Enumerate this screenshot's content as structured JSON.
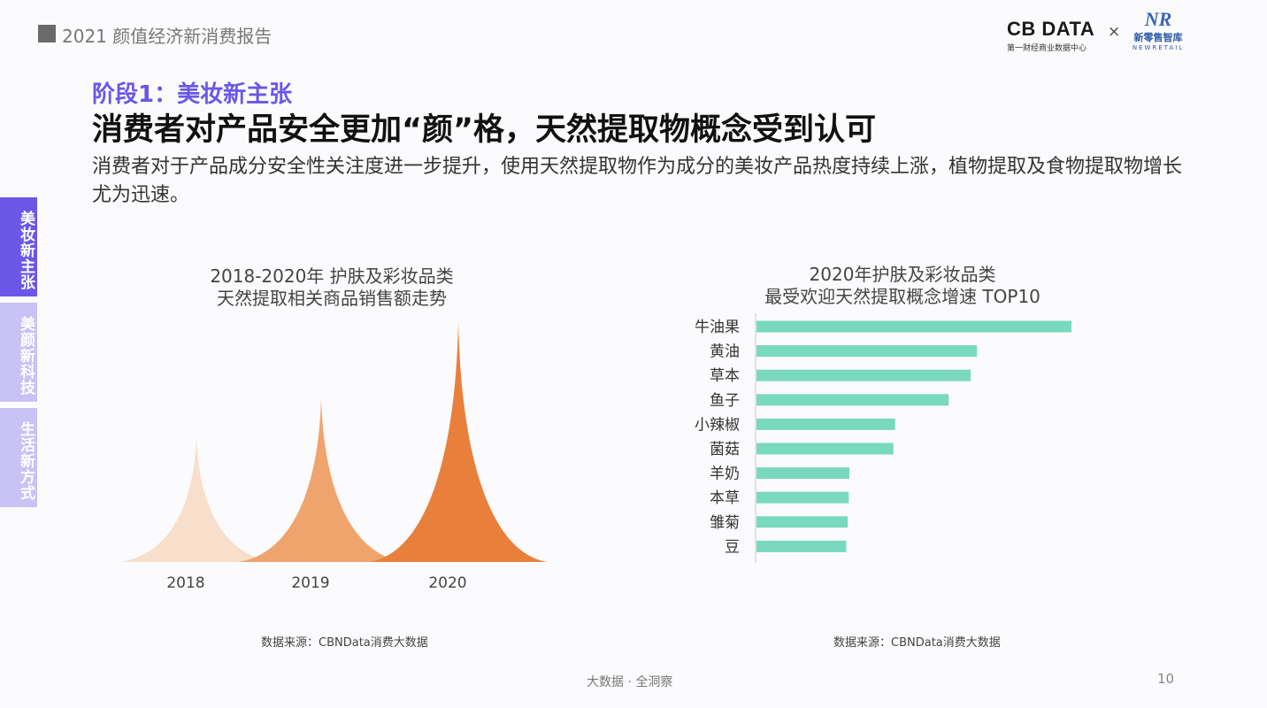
{
  "header": {
    "title": "2021 颜值经济新消费报告"
  },
  "logos": {
    "cbndata_name": "CB DATA",
    "cbndata_sub": "第一财经商业数据中心",
    "cross": "×",
    "nr_mark": "NR",
    "nr_cn": "新零售智库",
    "nr_en": "NEWRETAIL"
  },
  "section_label": "阶段1：美妆新主张",
  "headline": "消费者对产品安全更加“颜”格，天然提取物概念受到认可",
  "description": "消费者对于产品成分安全性关注度进一步提升，使用天然提取物作为成分的美妆产品热度持续上涨，植物提取及食物提取物增长尤为迅速。",
  "side_tabs": [
    {
      "label": "美妆新主张",
      "active": true
    },
    {
      "label": "美颜新科技",
      "active": false
    },
    {
      "label": "生活新方式",
      "active": false
    }
  ],
  "colors": {
    "accent": "#6a57e8",
    "tab_inactive": "#c9c2f4",
    "bar": "#79d9bf",
    "peak_2018": "#f8dfcb",
    "peak_2019": "#f0a46d",
    "peak_2020": "#e8803c"
  },
  "chart_data": [
    {
      "type": "area",
      "title": "2018-2020年 护肤及彩妆品类\n天然提取相关商品销售额走势",
      "categories": [
        "2018",
        "2019",
        "2020"
      ],
      "values": [
        0.52,
        0.68,
        1.0
      ],
      "value_note": "relative peak height (no axis printed)"
    },
    {
      "type": "bar",
      "orientation": "horizontal",
      "title": "2020年护肤及彩妆品类\n最受欢迎天然提取概念增速 TOP10",
      "categories": [
        "牛油果",
        "黄油",
        "草本",
        "鱼子",
        "小辣椒",
        "菌菇",
        "羊奶",
        "本草",
        "雏菊",
        "豆"
      ],
      "values": [
        1.0,
        0.7,
        0.68,
        0.61,
        0.44,
        0.435,
        0.295,
        0.293,
        0.29,
        0.285
      ],
      "value_note": "relative bar length (no axis printed)"
    }
  ],
  "sources": {
    "left": "数据来源：CBNData消费大数据",
    "right": "数据来源：CBNData消费大数据"
  },
  "footer": {
    "text": "大数据 · 全洞察",
    "page": "10"
  }
}
